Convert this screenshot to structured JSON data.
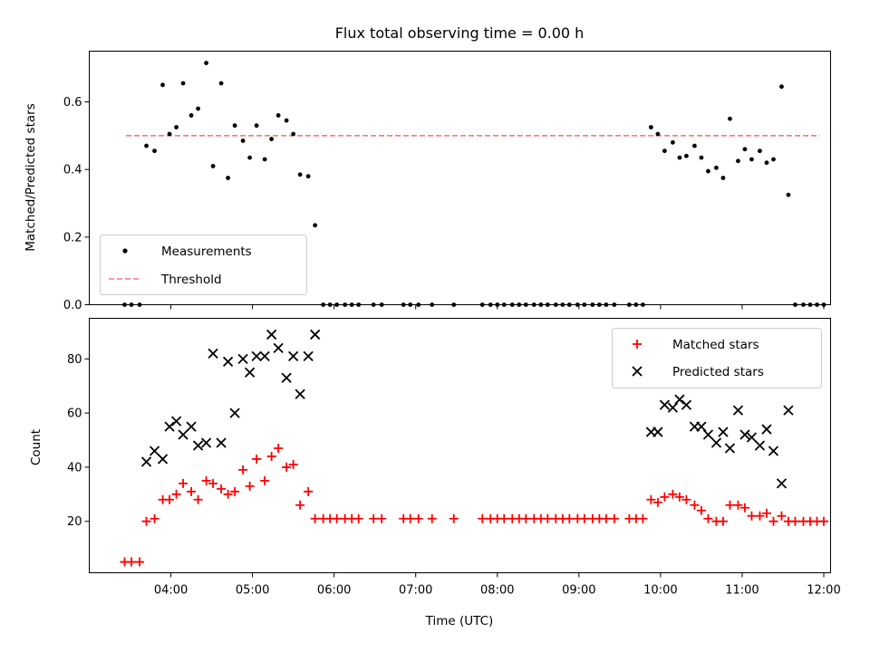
{
  "chart_data": [
    {
      "type": "scatter",
      "title": "Flux total observing time = 0.00 h",
      "xlabel": "",
      "ylabel": "Matched/Predicted stars",
      "xlim": [
        "03:00",
        "12:05"
      ],
      "ylim": [
        0,
        0.75
      ],
      "yticks": [
        "0.0",
        "0.2",
        "0.4",
        "0.6"
      ],
      "grid": false,
      "legend": {
        "placement": "lower-left",
        "entries": [
          "Measurements",
          "Threshold"
        ]
      },
      "series": [
        {
          "name": "Measurements",
          "marker": "dot",
          "color": "#000000",
          "points": [
            [
              "03:26",
              0
            ],
            [
              "03:31",
              0
            ],
            [
              "03:37",
              0
            ],
            [
              "03:42",
              0.47
            ],
            [
              "03:48",
              0.455
            ],
            [
              "03:54",
              0.65
            ],
            [
              "03:59",
              0.505
            ],
            [
              "04:04",
              0.525
            ],
            [
              "04:09",
              0.655
            ],
            [
              "04:15",
              0.56
            ],
            [
              "04:20",
              0.58
            ],
            [
              "04:26",
              0.715
            ],
            [
              "04:31",
              0.41
            ],
            [
              "04:37",
              0.655
            ],
            [
              "04:42",
              0.375
            ],
            [
              "04:47",
              0.53
            ],
            [
              "04:53",
              0.485
            ],
            [
              "04:58",
              0.435
            ],
            [
              "05:03",
              0.53
            ],
            [
              "05:09",
              0.43
            ],
            [
              "05:14",
              0.49
            ],
            [
              "05:19",
              0.56
            ],
            [
              "05:25",
              0.545
            ],
            [
              "05:30",
              0.505
            ],
            [
              "05:35",
              0.385
            ],
            [
              "05:41",
              0.38
            ],
            [
              "05:46",
              0.235
            ],
            [
              "05:52",
              0
            ],
            [
              "05:57",
              0
            ],
            [
              "06:02",
              0
            ],
            [
              "06:08",
              0
            ],
            [
              "06:13",
              0
            ],
            [
              "06:18",
              0
            ],
            [
              "06:29",
              0
            ],
            [
              "06:35",
              0
            ],
            [
              "06:51",
              0
            ],
            [
              "06:56",
              0
            ],
            [
              "07:02",
              0
            ],
            [
              "07:12",
              0
            ],
            [
              "07:28",
              0
            ],
            [
              "07:49",
              0
            ],
            [
              "07:55",
              0
            ],
            [
              "08:00",
              0
            ],
            [
              "08:05",
              0
            ],
            [
              "08:11",
              0
            ],
            [
              "08:16",
              0
            ],
            [
              "08:21",
              0
            ],
            [
              "08:27",
              0
            ],
            [
              "08:32",
              0
            ],
            [
              "08:37",
              0
            ],
            [
              "08:43",
              0
            ],
            [
              "08:48",
              0
            ],
            [
              "08:53",
              0
            ],
            [
              "08:59",
              0
            ],
            [
              "09:04",
              0
            ],
            [
              "09:10",
              0
            ],
            [
              "09:15",
              0
            ],
            [
              "09:20",
              0
            ],
            [
              "09:26",
              0
            ],
            [
              "09:37",
              0
            ],
            [
              "09:42",
              0
            ],
            [
              "09:47",
              0
            ],
            [
              "09:53",
              0.525
            ],
            [
              "09:58",
              0.505
            ],
            [
              "10:03",
              0.455
            ],
            [
              "10:09",
              0.48
            ],
            [
              "10:14",
              0.435
            ],
            [
              "10:19",
              0.44
            ],
            [
              "10:25",
              0.47
            ],
            [
              "10:30",
              0.435
            ],
            [
              "10:35",
              0.395
            ],
            [
              "10:41",
              0.405
            ],
            [
              "10:46",
              0.375
            ],
            [
              "10:51",
              0.55
            ],
            [
              "10:57",
              0.425
            ],
            [
              "11:02",
              0.46
            ],
            [
              "11:07",
              0.43
            ],
            [
              "11:13",
              0.455
            ],
            [
              "11:18",
              0.42
            ],
            [
              "11:23",
              0.43
            ],
            [
              "11:29",
              0.645
            ],
            [
              "11:34",
              0.325
            ],
            [
              "11:39",
              0
            ],
            [
              "11:45",
              0
            ],
            [
              "11:50",
              0
            ],
            [
              "11:55",
              0
            ],
            [
              "12:00",
              0
            ]
          ]
        },
        {
          "name": "Threshold",
          "style": "dashed",
          "color": "#ff7777",
          "x": [
            "03:27",
            "11:57"
          ],
          "y": [
            0.5,
            0.5
          ]
        }
      ]
    },
    {
      "type": "scatter",
      "title": "",
      "xlabel": "Time (UTC)",
      "ylabel": "Count",
      "xlim": [
        "03:00",
        "12:05"
      ],
      "ylim": [
        1,
        95
      ],
      "xticks": [
        "04:00",
        "05:00",
        "06:00",
        "07:00",
        "08:00",
        "09:00",
        "10:00",
        "11:00",
        "12:00"
      ],
      "yticks": [
        "20",
        "40",
        "60",
        "80"
      ],
      "grid": false,
      "legend": {
        "placement": "top-right",
        "entries": [
          "Matched stars",
          "Predicted stars"
        ]
      },
      "series": [
        {
          "name": "Matched stars",
          "marker": "plus",
          "color": "#ff0000",
          "points": [
            [
              "03:26",
              5
            ],
            [
              "03:31",
              5
            ],
            [
              "03:37",
              5
            ],
            [
              "03:42",
              20
            ],
            [
              "03:48",
              21
            ],
            [
              "03:54",
              28
            ],
            [
              "03:59",
              28
            ],
            [
              "04:04",
              30
            ],
            [
              "04:09",
              34
            ],
            [
              "04:15",
              31
            ],
            [
              "04:20",
              28
            ],
            [
              "04:26",
              35
            ],
            [
              "04:31",
              34
            ],
            [
              "04:37",
              32
            ],
            [
              "04:42",
              30
            ],
            [
              "04:47",
              31
            ],
            [
              "04:53",
              39
            ],
            [
              "04:58",
              33
            ],
            [
              "05:03",
              43
            ],
            [
              "05:09",
              35
            ],
            [
              "05:14",
              44
            ],
            [
              "05:19",
              47
            ],
            [
              "05:25",
              40
            ],
            [
              "05:30",
              41
            ],
            [
              "05:35",
              26
            ],
            [
              "05:41",
              31
            ],
            [
              "05:46",
              21
            ],
            [
              "05:52",
              21
            ],
            [
              "05:57",
              21
            ],
            [
              "06:02",
              21
            ],
            [
              "06:08",
              21
            ],
            [
              "06:13",
              21
            ],
            [
              "06:18",
              21
            ],
            [
              "06:29",
              21
            ],
            [
              "06:35",
              21
            ],
            [
              "06:51",
              21
            ],
            [
              "06:56",
              21
            ],
            [
              "07:02",
              21
            ],
            [
              "07:12",
              21
            ],
            [
              "07:28",
              21
            ],
            [
              "07:49",
              21
            ],
            [
              "07:55",
              21
            ],
            [
              "08:00",
              21
            ],
            [
              "08:05",
              21
            ],
            [
              "08:11",
              21
            ],
            [
              "08:16",
              21
            ],
            [
              "08:21",
              21
            ],
            [
              "08:27",
              21
            ],
            [
              "08:32",
              21
            ],
            [
              "08:37",
              21
            ],
            [
              "08:43",
              21
            ],
            [
              "08:48",
              21
            ],
            [
              "08:53",
              21
            ],
            [
              "08:59",
              21
            ],
            [
              "09:04",
              21
            ],
            [
              "09:10",
              21
            ],
            [
              "09:15",
              21
            ],
            [
              "09:20",
              21
            ],
            [
              "09:26",
              21
            ],
            [
              "09:37",
              21
            ],
            [
              "09:42",
              21
            ],
            [
              "09:47",
              21
            ],
            [
              "09:53",
              28
            ],
            [
              "09:58",
              27
            ],
            [
              "10:03",
              29
            ],
            [
              "10:09",
              30
            ],
            [
              "10:14",
              29
            ],
            [
              "10:19",
              28
            ],
            [
              "10:25",
              26
            ],
            [
              "10:30",
              24
            ],
            [
              "10:35",
              21
            ],
            [
              "10:41",
              20
            ],
            [
              "10:46",
              20
            ],
            [
              "10:51",
              26
            ],
            [
              "10:57",
              26
            ],
            [
              "11:02",
              25
            ],
            [
              "11:07",
              22
            ],
            [
              "11:13",
              22
            ],
            [
              "11:18",
              23
            ],
            [
              "11:23",
              20
            ],
            [
              "11:29",
              22
            ],
            [
              "11:34",
              20
            ],
            [
              "11:39",
              20
            ],
            [
              "11:45",
              20
            ],
            [
              "11:50",
              20
            ],
            [
              "11:55",
              20
            ],
            [
              "12:00",
              20
            ]
          ]
        },
        {
          "name": "Predicted stars",
          "marker": "x",
          "color": "#000000",
          "points": [
            [
              "03:42",
              42
            ],
            [
              "03:48",
              46
            ],
            [
              "03:54",
              43
            ],
            [
              "03:59",
              55
            ],
            [
              "04:04",
              57
            ],
            [
              "04:09",
              52
            ],
            [
              "04:15",
              55
            ],
            [
              "04:20",
              48
            ],
            [
              "04:26",
              49
            ],
            [
              "04:31",
              82
            ],
            [
              "04:37",
              49
            ],
            [
              "04:42",
              79
            ],
            [
              "04:47",
              60
            ],
            [
              "04:53",
              80
            ],
            [
              "04:58",
              75
            ],
            [
              "05:03",
              81
            ],
            [
              "05:09",
              81
            ],
            [
              "05:14",
              89
            ],
            [
              "05:19",
              84
            ],
            [
              "05:25",
              73
            ],
            [
              "05:30",
              81
            ],
            [
              "05:35",
              67
            ],
            [
              "05:41",
              81
            ],
            [
              "05:46",
              89
            ],
            [
              "09:53",
              53
            ],
            [
              "09:58",
              53
            ],
            [
              "10:03",
              63
            ],
            [
              "10:09",
              62
            ],
            [
              "10:14",
              65
            ],
            [
              "10:19",
              63
            ],
            [
              "10:25",
              55
            ],
            [
              "10:30",
              55
            ],
            [
              "10:35",
              52
            ],
            [
              "10:41",
              49
            ],
            [
              "10:46",
              53
            ],
            [
              "10:51",
              47
            ],
            [
              "10:57",
              61
            ],
            [
              "11:02",
              52
            ],
            [
              "11:07",
              51
            ],
            [
              "11:13",
              48
            ],
            [
              "11:18",
              54
            ],
            [
              "11:23",
              46
            ],
            [
              "11:29",
              34
            ],
            [
              "11:34",
              61
            ]
          ]
        }
      ]
    }
  ]
}
